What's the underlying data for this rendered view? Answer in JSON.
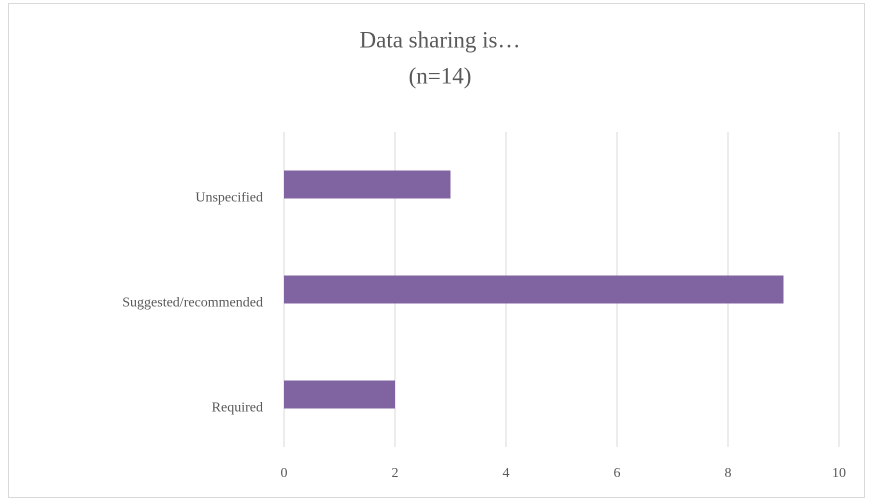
{
  "chart_data": {
    "type": "bar",
    "orientation": "horizontal",
    "title": "Data sharing is…",
    "subtitle": "(n=14)",
    "categories": [
      "Unspecified",
      "Suggested/recommended",
      "Required"
    ],
    "values": [
      3,
      9,
      2
    ],
    "color": "#8064a2",
    "xlim": [
      0,
      10
    ],
    "xticks": [
      0,
      2,
      4,
      6,
      8,
      10
    ],
    "grid": true
  }
}
